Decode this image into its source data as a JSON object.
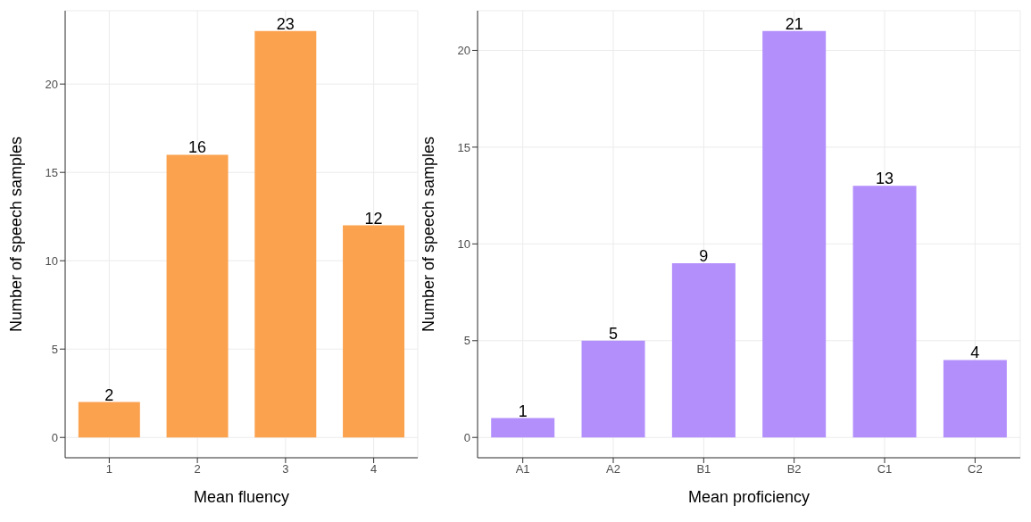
{
  "chart_data": [
    {
      "type": "bar",
      "xlabel": "Mean fluency",
      "ylabel": "Number of speech samples",
      "categories": [
        "1",
        "2",
        "3",
        "4"
      ],
      "values": [
        2,
        16,
        23,
        12
      ],
      "color": "#fba24f",
      "ylim": [
        -1.15,
        24.15
      ],
      "yticks": [
        0,
        5,
        10,
        15,
        20
      ],
      "grid": true,
      "data_labels": true
    },
    {
      "type": "bar",
      "xlabel": "Mean proficiency",
      "ylabel": "Number of speech samples",
      "categories": [
        "A1",
        "A2",
        "B1",
        "B2",
        "C1",
        "C2"
      ],
      "values": [
        1,
        5,
        9,
        21,
        13,
        4
      ],
      "color": "#b38ffc",
      "ylim": [
        -1.05,
        22.05
      ],
      "yticks": [
        0,
        5,
        10,
        15,
        20
      ],
      "grid": true,
      "data_labels": true
    }
  ]
}
